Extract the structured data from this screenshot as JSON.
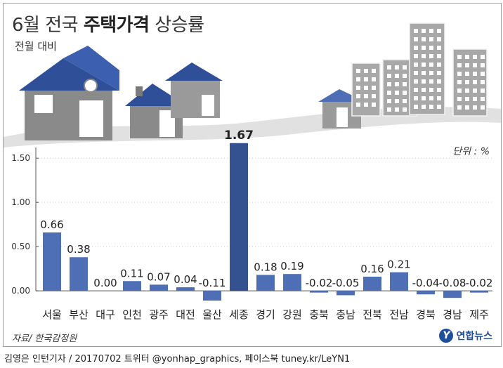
{
  "title": {
    "prefix": "6월 전국",
    "highlight": "주택가격",
    "suffix": "상승률"
  },
  "subtitle": "전월 대비",
  "unit_label": "단위 : %",
  "source": "자료/ 한국감정원",
  "logo": {
    "mark": "Y",
    "text": "연합뉴스"
  },
  "credit": "김영은 인턴기자 / 20170702   트위터 @yonhap_graphics, 페이스북 tuney.kr/LeYN1",
  "colors": {
    "bar": "#4e6fb5",
    "bar_highlight": "#34528f",
    "axis": "#555555",
    "grid": "#888888",
    "sky": "#dcdcdc"
  },
  "chart_data": {
    "type": "bar",
    "title": "6월 전국 주택가격 상승률",
    "subtitle": "전월 대비",
    "ylabel": "%",
    "xlabel": "",
    "ylim": [
      -0.15,
      1.7
    ],
    "yticks": [
      0.0,
      0.5,
      1.0,
      1.5
    ],
    "ytick_labels": [
      "0.00",
      "0.50",
      "1.00",
      "1.50"
    ],
    "categories": [
      "서울",
      "부산",
      "대구",
      "인천",
      "광주",
      "대전",
      "울산",
      "세종",
      "경기",
      "강원",
      "충북",
      "충남",
      "전북",
      "전남",
      "경북",
      "경남",
      "제주"
    ],
    "values": [
      0.66,
      0.38,
      0.0,
      0.11,
      0.07,
      0.04,
      -0.11,
      1.67,
      0.18,
      0.19,
      -0.02,
      -0.05,
      0.16,
      0.21,
      -0.04,
      -0.08,
      -0.02
    ],
    "value_labels": [
      "0.66",
      "0.38",
      "0.00",
      "0.11",
      "0.07",
      "0.04",
      "-0.11",
      "1.67",
      "0.18",
      "0.19",
      "-0.02",
      "-0.05",
      "0.16",
      "0.21",
      "-0.04",
      "-0.08",
      "-0.02"
    ],
    "highlight_index": 7,
    "grid": true
  }
}
